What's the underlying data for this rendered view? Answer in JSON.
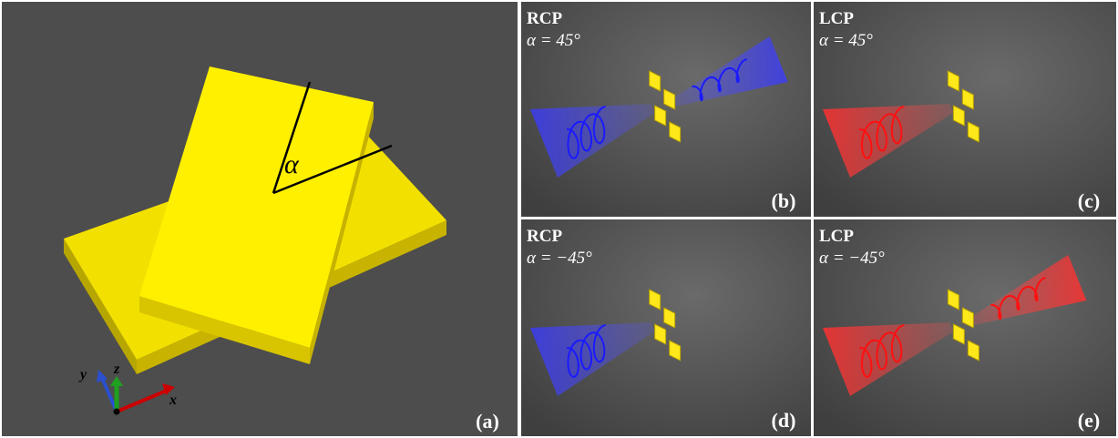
{
  "panels": [
    {
      "label": "(a)",
      "axes": {
        "x": "x",
        "y": "y",
        "z": "z"
      },
      "angle_symbol": "α"
    },
    {
      "label": "(b)",
      "polarization": "RCP",
      "angle": "α = 45°"
    },
    {
      "label": "(c)",
      "polarization": "LCP",
      "angle": "α = 45°"
    },
    {
      "label": "(d)",
      "polarization": "RCP",
      "angle": "α = −45°"
    },
    {
      "label": "(e)",
      "polarization": "LCP",
      "angle": "α = −45°"
    }
  ]
}
